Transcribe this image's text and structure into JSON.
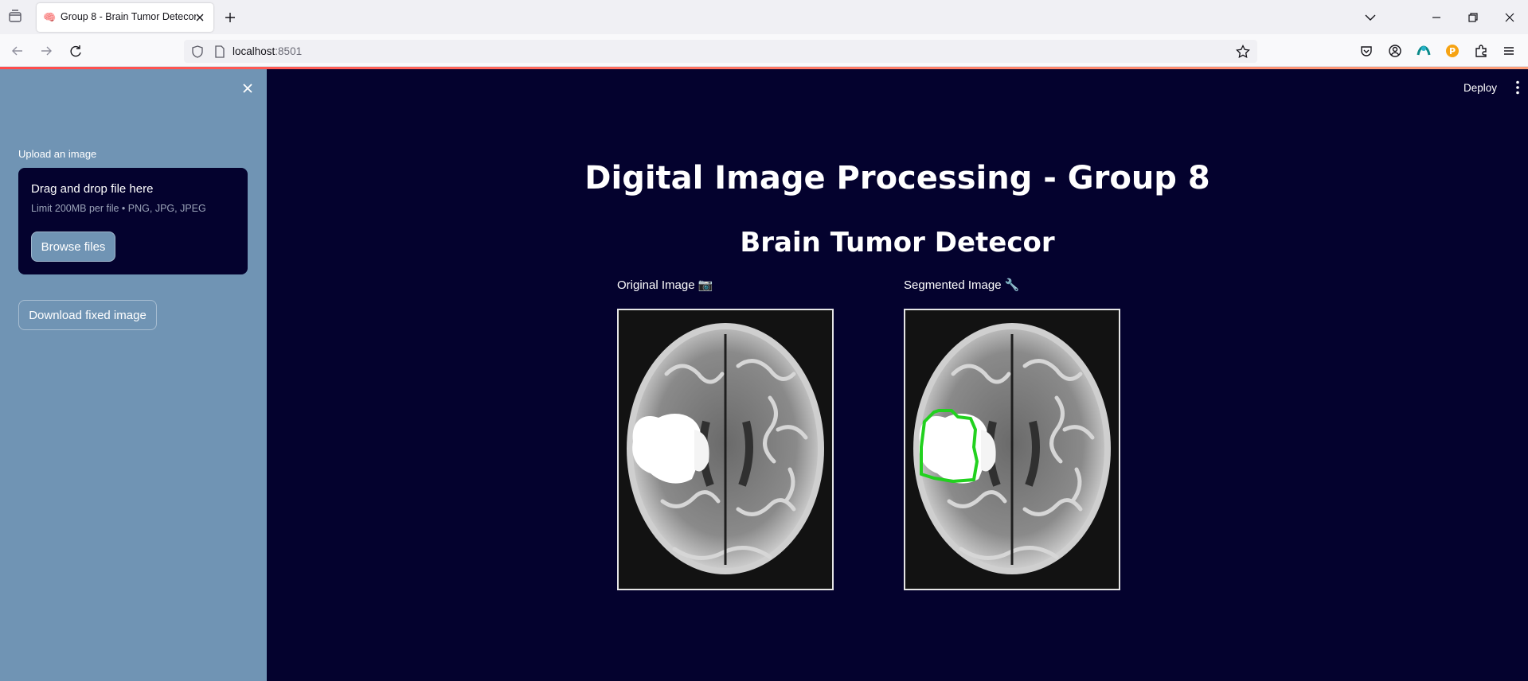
{
  "browser": {
    "tab_title": "Group 8 - Brain Tumor Detecor",
    "tab_favicon": "🧠",
    "url_host": "localhost",
    "url_port": ":8501",
    "icons": [
      "tab-list-icon",
      "close-icon",
      "plus-icon",
      "chevron-down-icon",
      "minimize-icon",
      "restore-icon",
      "close-window-icon",
      "back-arrow-icon",
      "forward-arrow-icon",
      "reload-icon",
      "shield-icon",
      "page-icon",
      "star-icon",
      "pocket-icon",
      "account-icon",
      "extension-a-icon",
      "extension-b-icon",
      "puzzle-icon",
      "menu-icon"
    ]
  },
  "sidebar": {
    "upload_label": "Upload an image",
    "dropzone_title": "Drag and drop file here",
    "dropzone_limit": "Limit 200MB per file • PNG, JPG, JPEG",
    "browse_label": "Browse files",
    "download_label": "Download fixed image"
  },
  "header": {
    "deploy_label": "Deploy"
  },
  "main": {
    "title": "Digital Image Processing - Group 8",
    "subtitle": "Brain Tumor Detecor",
    "original_caption": "Original Image 📷",
    "segmented_caption": "Segmented Image 🔧",
    "contour_color": "#22d11f"
  },
  "colors": {
    "main_bg": "#04022e",
    "sidebar_bg": "#7094b4",
    "accent_line": "#ff4b4b"
  }
}
